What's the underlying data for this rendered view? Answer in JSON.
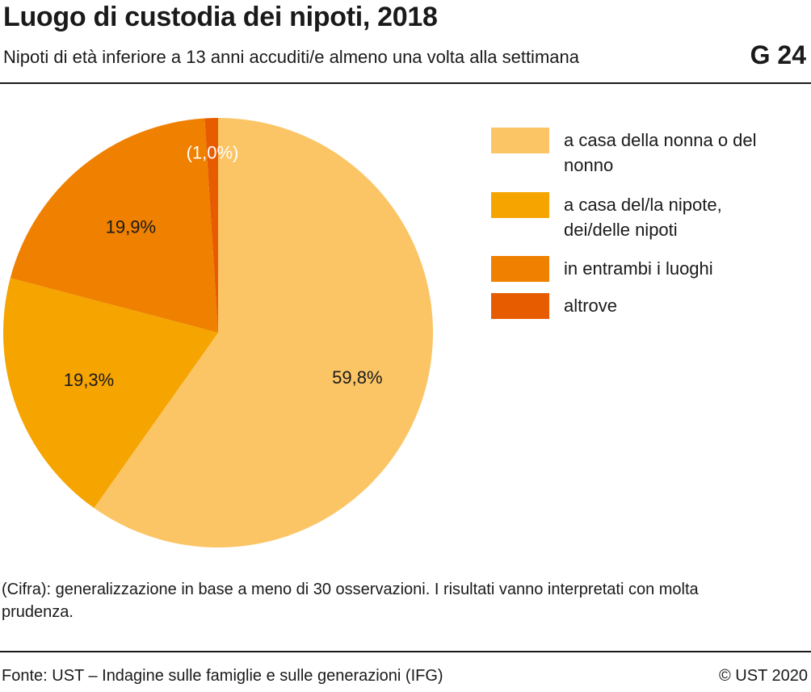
{
  "header": {
    "title": "Luogo di custodia dei nipoti, 2018",
    "subtitle": "Nipoti di età inferiore a 13 anni accuditi/e almeno una volta alla settimana",
    "figure_number": "G 24"
  },
  "footer": {
    "note": "(Cifra): generalizzazione in base a meno di 30 osservazioni. I risultati vanno interpretati con molta prudenza.",
    "source": "Fonte: UST – Indagine sulle famiglie e sulle generazioni (IFG)",
    "copyright": "© UST 2020"
  },
  "chart_data": {
    "type": "pie",
    "title": "Luogo di custodia dei nipoti, 2018",
    "subtitle": "Nipoti di età inferiore a 13 anni accuditi/e almeno una volta alla settimana",
    "legend_position": "right",
    "slices": [
      {
        "label": "a casa della nonna o del nonno",
        "value": 59.8,
        "value_label": "59,8%",
        "color": "#fbc566",
        "label_color": "#1a1a1a"
      },
      {
        "label": "a casa del/la nipote, dei/delle nipoti",
        "value": 19.3,
        "value_label": "19,3%",
        "color": "#f5a400",
        "label_color": "#1a1a1a"
      },
      {
        "label": "in entrambi i luoghi",
        "value": 19.9,
        "value_label": "19,9%",
        "color": "#ef8000",
        "label_color": "#1a1a1a"
      },
      {
        "label": "altrove",
        "value": 1.0,
        "value_label": "(1,0%)",
        "color": "#e85c00",
        "label_color": "#ffffff"
      }
    ]
  }
}
